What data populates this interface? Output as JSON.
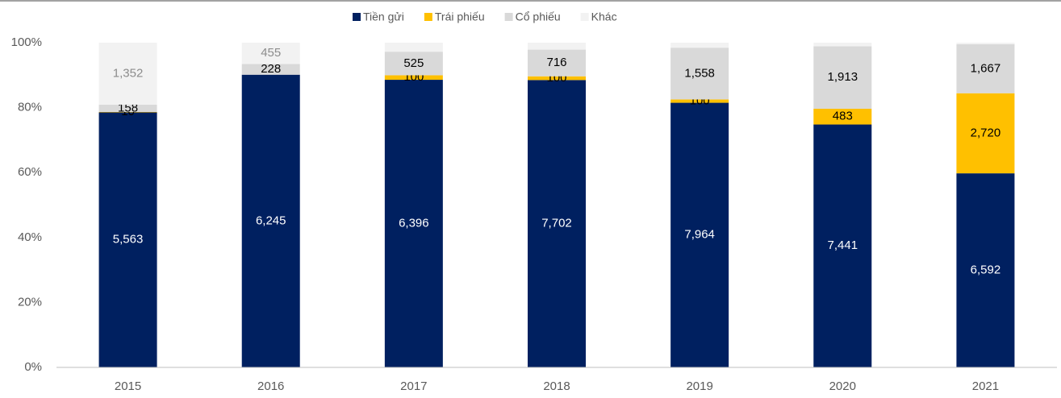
{
  "chart_data": {
    "type": "bar",
    "stacking": "percent",
    "categories": [
      "2015",
      "2016",
      "2017",
      "2018",
      "2019",
      "2020",
      "2021"
    ],
    "series": [
      {
        "name": "Tiền gửi",
        "color": "#002060",
        "label_color": "#ffffff",
        "values": [
          5563,
          6245,
          6396,
          7702,
          7964,
          7441,
          6592
        ],
        "value_labels": [
          "5,563",
          "6,245",
          "6,396",
          "7,702",
          "7,964",
          "7,441",
          "6,592"
        ]
      },
      {
        "name": "Trái phiếu",
        "color": "#ffc000",
        "label_color": "#000000",
        "values": [
          10,
          0,
          100,
          100,
          100,
          483,
          2720
        ],
        "value_labels": [
          "10",
          null,
          "100",
          "100",
          "100",
          "483",
          "2,720"
        ]
      },
      {
        "name": "Cổ phiếu",
        "color": "#d9d9d9",
        "label_color": "#000000",
        "values": [
          158,
          228,
          525,
          716,
          1558,
          1913,
          1667
        ],
        "value_labels": [
          "158",
          "228",
          "525",
          "716",
          "1,558",
          "1,913",
          "1,667"
        ]
      },
      {
        "name": "Khác",
        "color": "#f2f2f2",
        "label_color": "#8c8c8c",
        "values": [
          1352,
          455,
          200,
          185,
          150,
          110,
          50
        ],
        "value_labels": [
          "1,352",
          "455",
          null,
          null,
          null,
          null,
          null
        ]
      }
    ],
    "ylim": [
      0,
      100
    ],
    "yticks": [
      {
        "value": 0,
        "label": "0%"
      },
      {
        "value": 20,
        "label": "20%"
      },
      {
        "value": 40,
        "label": "40%"
      },
      {
        "value": 60,
        "label": "60%"
      },
      {
        "value": 80,
        "label": "80%"
      },
      {
        "value": 100,
        "label": "100%"
      }
    ],
    "legend": "top",
    "grid": false
  }
}
